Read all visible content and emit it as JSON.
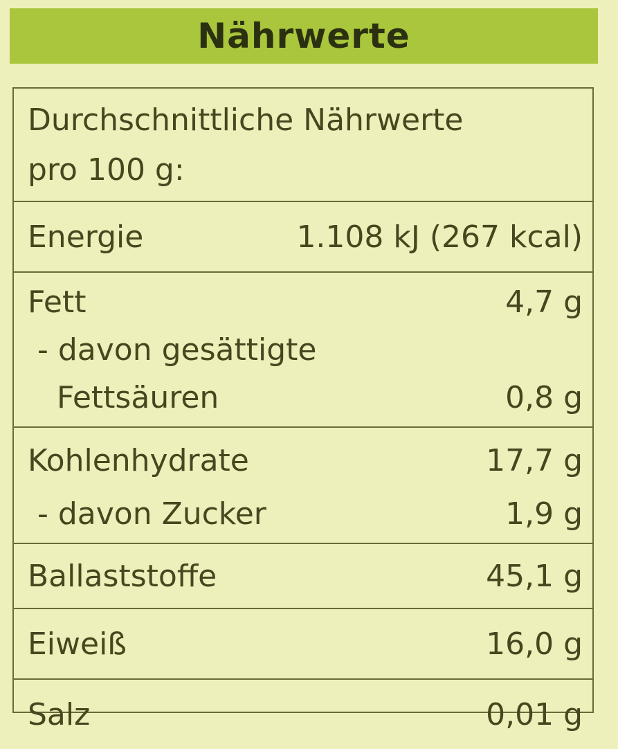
{
  "header": {
    "title": "Nährwerte"
  },
  "intro": {
    "line1": "Durchschnittliche Nährwerte",
    "line2": "pro 100 g:"
  },
  "sections": [
    [
      {
        "label": "Energie",
        "value": "1.108 kJ (267 kcal)"
      }
    ],
    [
      {
        "label": "Fett",
        "value": "4,7 g"
      },
      {
        "label": " - davon gesättigte",
        "value": ""
      },
      {
        "label": "   Fettsäuren",
        "value": "0,8 g"
      }
    ],
    [
      {
        "label": "Kohlenhydrate",
        "value": "17,7 g"
      },
      {
        "label": " - davon Zucker",
        "value": "1,9 g"
      }
    ],
    [
      {
        "label": "Ballaststoffe",
        "value": "45,1 g"
      }
    ],
    [
      {
        "label": "Eiweiß",
        "value": "16,0 g"
      }
    ],
    [
      {
        "label": "Salz",
        "value": "0,01 g"
      }
    ]
  ],
  "colors": {
    "header": "#a9c63c",
    "background": "#eef0bb",
    "text": "#48461f"
  }
}
